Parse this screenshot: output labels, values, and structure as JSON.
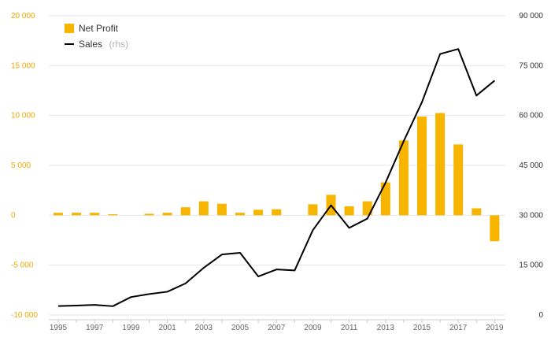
{
  "chart_data": {
    "type": "bar+line",
    "x": [
      1995,
      1996,
      1997,
      1998,
      1999,
      2000,
      2001,
      2002,
      2003,
      2004,
      2005,
      2006,
      2007,
      2008,
      2009,
      2010,
      2011,
      2012,
      2013,
      2014,
      2015,
      2016,
      2017,
      2018,
      2019
    ],
    "x_tick_labels": [
      "1995",
      "1997",
      "1999",
      "2001",
      "2003",
      "2005",
      "2007",
      "2009",
      "2011",
      "2013",
      "2015",
      "2017",
      "2019"
    ],
    "series": [
      {
        "name": "Net Profit",
        "type": "bar",
        "axis": "left",
        "color": "#f7b500",
        "values": [
          250,
          250,
          250,
          100,
          0,
          150,
          250,
          800,
          1400,
          1150,
          250,
          550,
          600,
          0,
          1100,
          2050,
          900,
          1400,
          3300,
          7500,
          9900,
          10250,
          7100,
          700,
          -2600
        ]
      },
      {
        "name": "Sales",
        "note": "(rhs)",
        "type": "line",
        "axis": "right",
        "color": "#000000",
        "values": [
          2700,
          2850,
          3050,
          2650,
          5400,
          6300,
          7000,
          9500,
          14200,
          18200,
          18700,
          11600,
          13700,
          13400,
          25500,
          33000,
          26200,
          29000,
          39800,
          52300,
          64000,
          78500,
          80000,
          66000,
          70500
        ]
      }
    ],
    "y_left": {
      "min": -10000,
      "max": 20000,
      "ticks": [
        -10000,
        -5000,
        0,
        5000,
        10000,
        15000,
        20000
      ],
      "tick_labels": [
        "-10 000",
        "-5 000",
        "0",
        "5 000",
        "10 000",
        "15 000",
        "20 000"
      ],
      "color": "#f0a800"
    },
    "y_right": {
      "min": 0,
      "max": 90000,
      "ticks": [
        0,
        15000,
        30000,
        45000,
        60000,
        75000,
        90000
      ],
      "tick_labels": [
        "0",
        "15 000",
        "30 000",
        "45 000",
        "60 000",
        "75 000",
        "90 000"
      ]
    },
    "grid": true,
    "legend_position": "top-left"
  }
}
